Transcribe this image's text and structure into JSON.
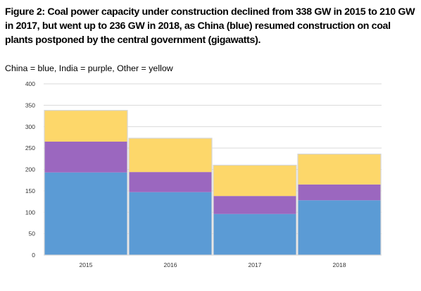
{
  "title": "Figure 2: Coal power capacity under construction declined from 338 GW in 2015 to 210 GW in 2017, but went up to 236 GW in 2018, as China (blue) resumed construction on coal plants postponed by the central government (gigawatts).",
  "subtitle": "China = blue, India = purple, Other = yellow",
  "colors": {
    "china": "#5b9bd5",
    "india": "#9b67bf",
    "other": "#fdd76a",
    "gridline": "#d9d9d9",
    "border": "#d6d6d6"
  },
  "chart_data": {
    "type": "bar",
    "stacked": true,
    "categories": [
      "2015",
      "2016",
      "2017",
      "2018"
    ],
    "series": [
      {
        "values": [
          193,
          147,
          96,
          128
        ],
        "color": "#5b9bd5"
      },
      {
        "values": [
          72,
          47,
          42,
          37
        ],
        "color": "#9b67bf"
      },
      {
        "values": [
          73,
          79,
          72,
          71
        ],
        "color": "#fdd76a"
      }
    ],
    "ylim": [
      0,
      400
    ],
    "yticks": [
      0,
      50,
      100,
      150,
      200,
      250,
      300,
      350,
      400
    ],
    "grid": true,
    "xlabel": "",
    "ylabel": ""
  }
}
